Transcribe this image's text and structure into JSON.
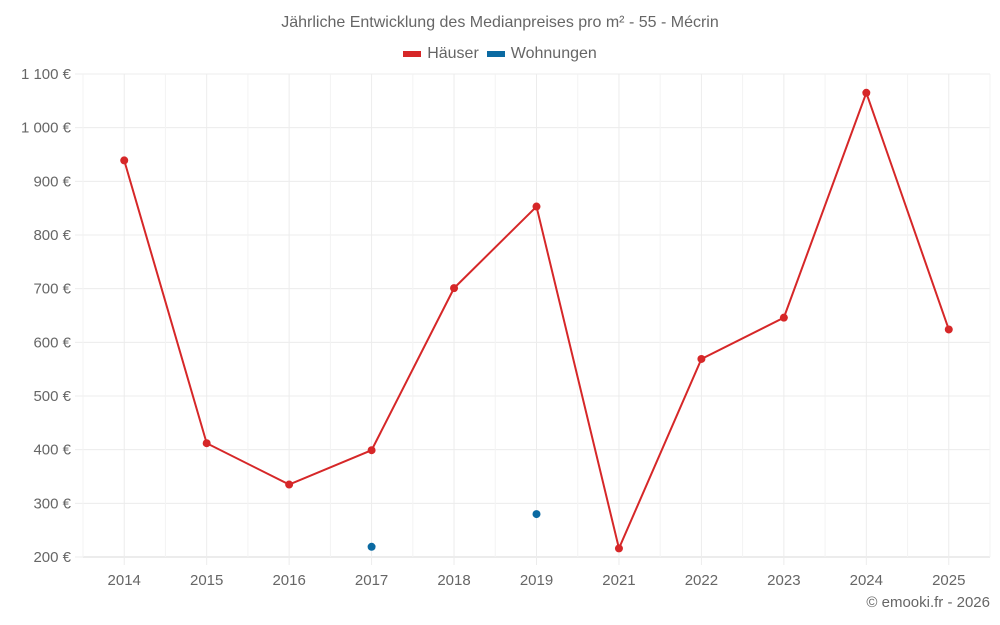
{
  "chart": {
    "title": "Jährliche Entwicklung des Medianpreises pro m² - 55 - Mécrin",
    "credit": "© emooki.fr - 2026",
    "legend": [
      {
        "label": "Häuser",
        "color": "#d62728"
      },
      {
        "label": "Wohnungen",
        "color": "#0b6aa2"
      }
    ]
  },
  "chart_data": {
    "type": "line",
    "title": "Jährliche Entwicklung des Medianpreises pro m² - 55 - Mécrin",
    "xlabel": "",
    "ylabel": "",
    "categories": [
      "2014",
      "2015",
      "2016",
      "2017",
      "2018",
      "2019",
      "2021",
      "2022",
      "2023",
      "2024",
      "2025"
    ],
    "ylim": [
      200,
      1100
    ],
    "yticks": [
      "200 €",
      "300 €",
      "400 €",
      "500 €",
      "600 €",
      "700 €",
      "800 €",
      "900 €",
      "1 000 €",
      "1 100 €"
    ],
    "grid": true,
    "legend_position": "top",
    "series": [
      {
        "name": "Häuser",
        "color": "#d62728",
        "values": [
          939,
          412,
          335,
          399,
          701,
          853,
          216,
          569,
          646,
          1065,
          624
        ]
      },
      {
        "name": "Wohnungen",
        "color": "#0b6aa2",
        "values": [
          null,
          null,
          null,
          219,
          null,
          280,
          null,
          null,
          null,
          null,
          null
        ]
      }
    ]
  }
}
